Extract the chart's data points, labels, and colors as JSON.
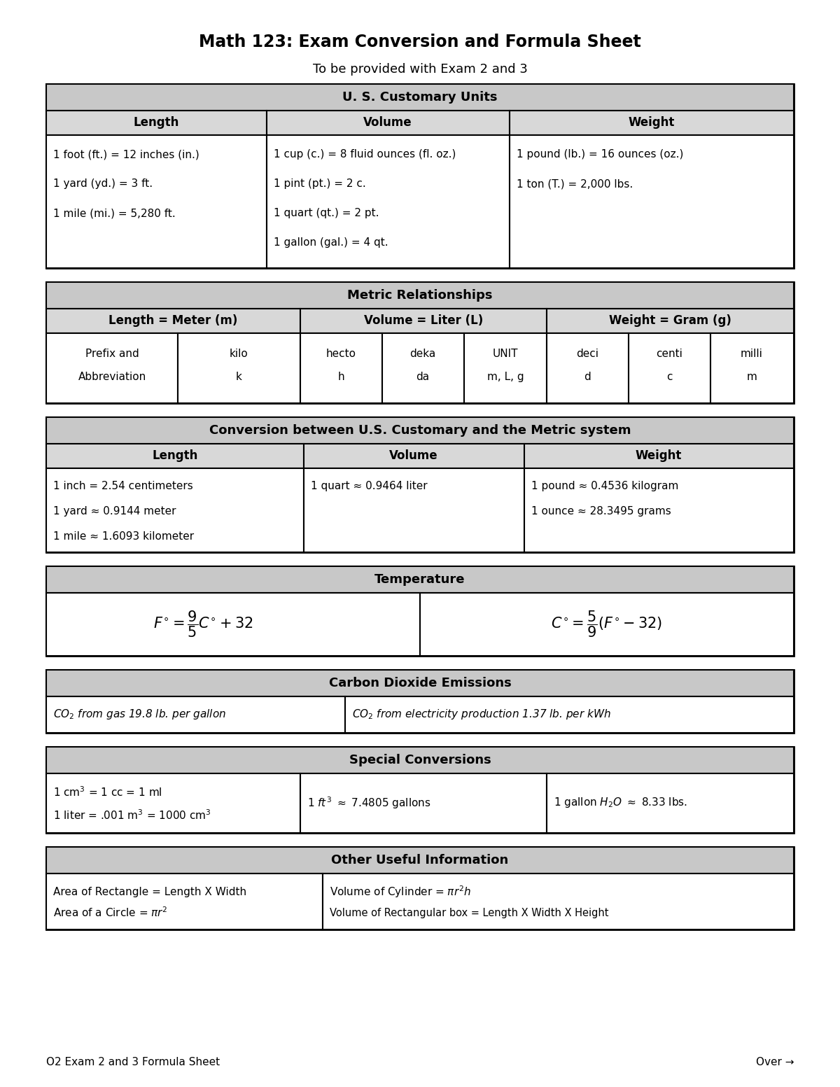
{
  "title": "Math 123: Exam Conversion and Formula Sheet",
  "subtitle": "To be provided with Exam 2 and 3",
  "bg_color": "#ffffff",
  "header_color": "#c8c8c8",
  "subheader_color": "#d8d8d8",
  "border_color": "#000000",
  "footer_left": "O2 Exam 2 and 3 Formula Sheet",
  "footer_right": "Over →"
}
